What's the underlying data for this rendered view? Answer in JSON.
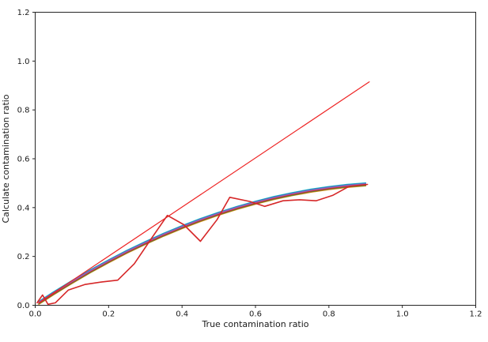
{
  "figure": {
    "background": "#ffffff"
  },
  "chart_data": {
    "type": "line",
    "title": "",
    "xlabel": "True contamination ratio",
    "ylabel": "Calculate contamination ratio",
    "xlim": [
      0,
      1.2
    ],
    "ylim": [
      0,
      1.2
    ],
    "xticks": [
      "0.0",
      "0.2",
      "0.4",
      "0.6",
      "0.8",
      "1.0",
      "1.2"
    ],
    "yticks": [
      "0.0",
      "0.2",
      "0.4",
      "0.6",
      "0.8",
      "1.0",
      "1.2"
    ],
    "grid": false,
    "legend": false,
    "frame_color": "#262626",
    "curve": {
      "comment_x": "shared x values of the smooth saturating curve bundle (y approx x - x^2/2)",
      "x": [
        0.01,
        0.05,
        0.1,
        0.15,
        0.2,
        0.25,
        0.3,
        0.35,
        0.4,
        0.45,
        0.5,
        0.55,
        0.6,
        0.65,
        0.7,
        0.75,
        0.8,
        0.85,
        0.9
      ],
      "y": [
        0.01,
        0.049,
        0.095,
        0.139,
        0.18,
        0.219,
        0.255,
        0.289,
        0.32,
        0.349,
        0.375,
        0.399,
        0.42,
        0.439,
        0.455,
        0.469,
        0.48,
        0.489,
        0.495
      ]
    },
    "bundle_lines": [
      {
        "name": "smooth-run-orange",
        "color": "#ff7f0e",
        "dy": -0.006,
        "width": 1.5
      },
      {
        "name": "smooth-run-green",
        "color": "#2ca02c",
        "dy": -0.004,
        "width": 1.5
      },
      {
        "name": "smooth-run-cyan",
        "color": "#17becf",
        "dy": 0.006,
        "width": 1.5
      },
      {
        "name": "smooth-run-blue",
        "color": "#1f77b4",
        "dy": 0.004,
        "width": 1.5
      },
      {
        "name": "smooth-run-brown",
        "color": "#8c564b",
        "dy": -0.002,
        "width": 1.5
      },
      {
        "name": "smooth-run-gray",
        "color": "#7f7f7f",
        "dy": 0.0,
        "width": 1.5
      },
      {
        "name": "smooth-run-darkred",
        "color": "#d62728",
        "dy": -0.001,
        "width": 1.5
      },
      {
        "name": "smooth-run-purple",
        "color": "#9467bd",
        "dy": 0.002,
        "width": 1.5
      }
    ],
    "series": [
      {
        "name": "identity-line",
        "color": "#ee2222",
        "width": 1.2,
        "points": [
          [
            0.01,
            0.01
          ],
          [
            0.91,
            0.915
          ]
        ]
      },
      {
        "name": "estimated-ratio-line",
        "color": "#d62728",
        "width": 1.6,
        "points": [
          [
            0.005,
            0.01
          ],
          [
            0.02,
            0.042
          ],
          [
            0.035,
            0.004
          ],
          [
            0.055,
            0.01
          ],
          [
            0.09,
            0.062
          ],
          [
            0.135,
            0.085
          ],
          [
            0.18,
            0.095
          ],
          [
            0.225,
            0.103
          ],
          [
            0.27,
            0.17
          ],
          [
            0.315,
            0.27
          ],
          [
            0.36,
            0.368
          ],
          [
            0.405,
            0.33
          ],
          [
            0.45,
            0.262
          ],
          [
            0.495,
            0.35
          ],
          [
            0.53,
            0.442
          ],
          [
            0.585,
            0.425
          ],
          [
            0.625,
            0.405
          ],
          [
            0.675,
            0.428
          ],
          [
            0.72,
            0.432
          ],
          [
            0.765,
            0.428
          ],
          [
            0.81,
            0.45
          ],
          [
            0.855,
            0.487
          ],
          [
            0.905,
            0.495
          ]
        ]
      }
    ]
  }
}
